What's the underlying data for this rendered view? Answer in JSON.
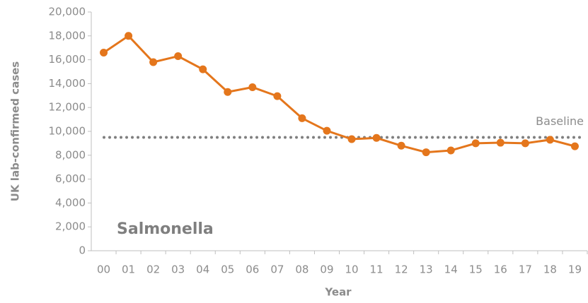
{
  "chart_data": {
    "type": "line",
    "categories": [
      "00",
      "01",
      "02",
      "03",
      "04",
      "05",
      "06",
      "07",
      "08",
      "09",
      "10",
      "11",
      "12",
      "13",
      "14",
      "15",
      "16",
      "17",
      "18",
      "19"
    ],
    "values": [
      16600,
      18000,
      15800,
      16300,
      15200,
      13300,
      13700,
      12950,
      11100,
      10050,
      9350,
      9450,
      8800,
      8250,
      8400,
      9000,
      9050,
      9000,
      9300,
      8750
    ],
    "color": "#e4761c",
    "ylim": [
      0,
      20000
    ],
    "yticks": [
      0,
      {
        "value": 2000,
        "label": "2,000"
      },
      {
        "value": 4000,
        "label": "4,000"
      },
      {
        "value": 6000,
        "label": "6,000"
      },
      {
        "value": 8000,
        "label": "8,000"
      },
      {
        "value": 10000,
        "label": "10,000"
      },
      {
        "value": 12000,
        "label": "12,000"
      },
      {
        "value": 14000,
        "label": "14,000"
      },
      {
        "value": 16000,
        "label": "16,000"
      },
      {
        "value": 18000,
        "label": "18,000"
      },
      {
        "value": 20000,
        "label": "20,000"
      }
    ],
    "ylabel": "UK lab-confirmed cases",
    "xlabel": "Year",
    "annotation": "Salmonella",
    "baseline": {
      "label": "Baseline",
      "value": 9500,
      "color": "#7f7f7f"
    }
  }
}
